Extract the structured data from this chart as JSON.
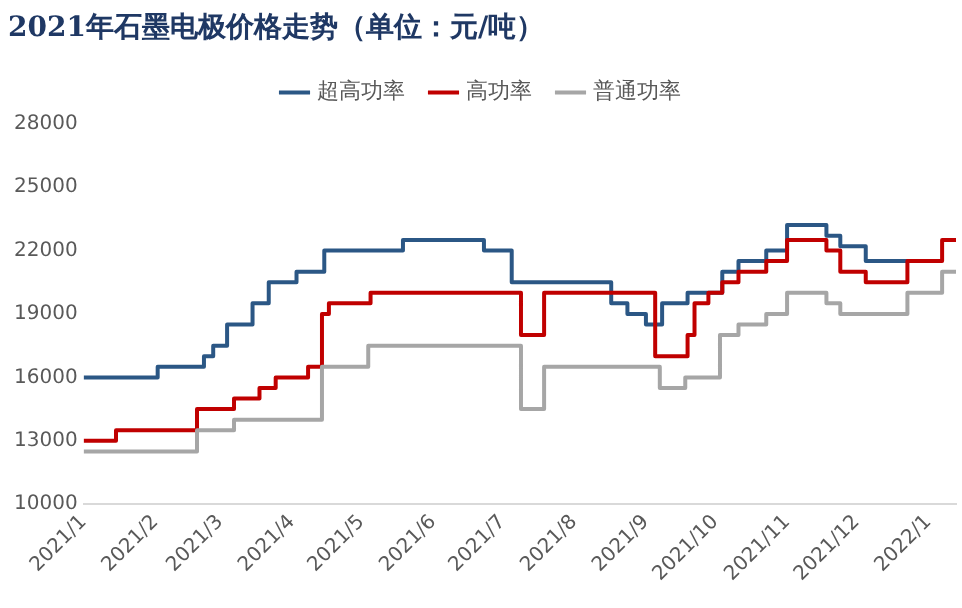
{
  "chart_data": {
    "type": "step",
    "title": "2021年石墨电极价格走势（单位：元/吨）",
    "xlim": [
      "2021-01-01",
      "2022-01-13"
    ],
    "xticks": [
      {
        "value": "2021-01",
        "label": "2021/1"
      },
      {
        "value": "2021-02",
        "label": "2021/2"
      },
      {
        "value": "2021-03",
        "label": "2021/3"
      },
      {
        "value": "2021-04",
        "label": "2021/4"
      },
      {
        "value": "2021-05",
        "label": "2021/5"
      },
      {
        "value": "2021-06",
        "label": "2021/6"
      },
      {
        "value": "2021-07",
        "label": "2021/7"
      },
      {
        "value": "2021-08",
        "label": "2021/8"
      },
      {
        "value": "2021-09",
        "label": "2021/9"
      },
      {
        "value": "2021-10",
        "label": "2021/10"
      },
      {
        "value": "2021-11",
        "label": "2021/11"
      },
      {
        "value": "2021-12",
        "label": "2021/12"
      },
      {
        "value": "2022-01",
        "label": "2022/1"
      }
    ],
    "ylim": [
      10000,
      28000
    ],
    "yticks": [
      10000,
      13000,
      16000,
      19000,
      22000,
      25000,
      28000
    ],
    "grid": false,
    "legend": "top",
    "marker": "none",
    "line_style": "solid",
    "series": [
      {
        "name": "超高功率",
        "color": "#2b5785",
        "x": [
          "2021-01-01",
          "2021-02-02",
          "2021-02-22",
          "2021-02-26",
          "2021-03-04",
          "2021-03-15",
          "2021-03-22",
          "2021-04-03",
          "2021-04-15",
          "2021-05-19",
          "2021-06-23",
          "2021-07-05",
          "2021-08-17",
          "2021-08-24",
          "2021-09-01",
          "2021-09-08",
          "2021-09-19",
          "2021-10-04",
          "2021-10-11",
          "2021-10-23",
          "2021-11-01",
          "2021-11-18",
          "2021-11-24",
          "2021-12-05",
          "2021-12-23"
        ],
        "values": [
          16000,
          16500,
          17000,
          17500,
          18500,
          19500,
          20500,
          21000,
          22000,
          22500,
          22000,
          20500,
          19500,
          19000,
          18500,
          19500,
          20000,
          21000,
          21500,
          22000,
          23200,
          22700,
          22200,
          21500,
          21500
        ]
      },
      {
        "name": "高功率",
        "color": "#c00000",
        "x": [
          "2021-01-01",
          "2021-01-15",
          "2021-02-19",
          "2021-03-07",
          "2021-03-18",
          "2021-03-25",
          "2021-04-08",
          "2021-04-14",
          "2021-04-17",
          "2021-05-05",
          "2021-07-09",
          "2021-07-19",
          "2021-09-05",
          "2021-09-19",
          "2021-09-22",
          "2021-09-28",
          "2021-10-04",
          "2021-10-11",
          "2021-10-23",
          "2021-11-01",
          "2021-11-18",
          "2021-11-24",
          "2021-12-05",
          "2021-12-23",
          "2022-01-07",
          "2022-01-13"
        ],
        "values": [
          13000,
          13500,
          14500,
          15000,
          15500,
          16000,
          16500,
          19000,
          19500,
          20000,
          18000,
          20000,
          17000,
          18000,
          19500,
          20000,
          20500,
          21000,
          21500,
          22500,
          22000,
          21000,
          20500,
          21500,
          22500,
          22500
        ]
      },
      {
        "name": "普通功率",
        "color": "#a6a6a6",
        "x": [
          "2021-01-01",
          "2021-02-19",
          "2021-03-07",
          "2021-04-14",
          "2021-05-04",
          "2021-07-09",
          "2021-07-19",
          "2021-09-07",
          "2021-09-18",
          "2021-10-03",
          "2021-10-11",
          "2021-10-23",
          "2021-11-01",
          "2021-11-18",
          "2021-11-24",
          "2021-12-23",
          "2022-01-07",
          "2022-01-13"
        ],
        "values": [
          12500,
          13500,
          14000,
          16500,
          17500,
          14500,
          16500,
          15500,
          16000,
          18000,
          18500,
          19000,
          20000,
          19500,
          19000,
          20000,
          21000,
          21000
        ]
      }
    ]
  }
}
